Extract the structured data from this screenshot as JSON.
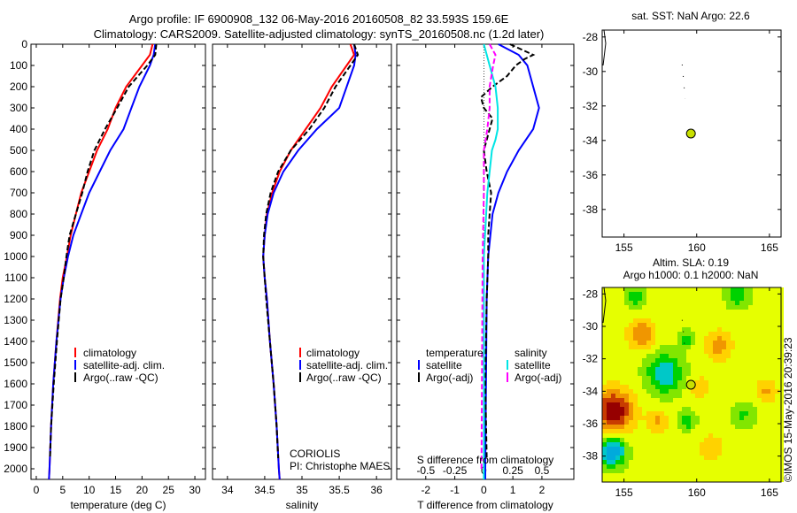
{
  "title": {
    "line1": "Argo profile: IF 6900908_132 06-May-2016 20160508_82 33.593S 159.6E",
    "line2": "Climatology: CARS2009. Satellite-adjusted climatology: synTS_20160508.nc (1.2d later)"
  },
  "colors": {
    "climatology": "#ff0000",
    "satellite": "#0000ff",
    "argo": "#000000",
    "sal_satellite": "#00e5e5",
    "sal_argo": "#ff00ff"
  },
  "chart_data": [
    {
      "type": "line",
      "id": "temperature",
      "xlabel": "temperature (deg C)",
      "ylabel": "",
      "xlim": [
        -1,
        32
      ],
      "ylim": [
        2050,
        0
      ],
      "xticks": [
        0,
        5,
        10,
        15,
        20,
        25,
        30
      ],
      "yticks": [
        0,
        100,
        200,
        300,
        400,
        500,
        600,
        700,
        800,
        900,
        1000,
        1100,
        1200,
        1300,
        1400,
        1500,
        1600,
        1700,
        1800,
        1900,
        2000
      ],
      "legend": [
        "climatology",
        "satellite-adj. clim.",
        "Argo(..raw -QC)"
      ],
      "series": [
        {
          "name": "climatology",
          "color": "#ff0000",
          "dash": false,
          "depth": [
            0,
            50,
            100,
            200,
            300,
            400,
            500,
            600,
            700,
            800,
            900,
            1000,
            1100,
            1200,
            1400,
            1600,
            1800,
            2000,
            2050
          ],
          "values": [
            22,
            21.5,
            20,
            17,
            15,
            13.5,
            11.5,
            10,
            8.5,
            7.5,
            6.5,
            5.8,
            5,
            4.5,
            3.8,
            3.2,
            2.8,
            2.5,
            2.4
          ]
        },
        {
          "name": "satellite-adj. clim.",
          "color": "#0000ff",
          "dash": false,
          "depth": [
            0,
            50,
            100,
            200,
            300,
            400,
            500,
            600,
            700,
            800,
            900,
            1000,
            1100,
            1200,
            1400,
            1600,
            1800,
            2000,
            2050
          ],
          "values": [
            22.5,
            22.2,
            21.5,
            19.5,
            18,
            16.5,
            14,
            12,
            10,
            8.5,
            7,
            6,
            5.2,
            4.6,
            3.8,
            3.2,
            2.8,
            2.5,
            2.4
          ]
        },
        {
          "name": "Argo(..raw -QC)",
          "color": "#000000",
          "dash": true,
          "depth": [
            0,
            50,
            100,
            200,
            300,
            400,
            500,
            600,
            700,
            800,
            900,
            1000,
            1100,
            1200,
            1400,
            1600,
            1800,
            1950
          ],
          "values": [
            22.7,
            22.5,
            21,
            17.5,
            15.3,
            13,
            11,
            9.7,
            8.7,
            7.5,
            6.3,
            5.7,
            5.2,
            4.6,
            3.9,
            3.3,
            2.8,
            2.6
          ]
        }
      ]
    },
    {
      "type": "line",
      "id": "salinity",
      "xlabel": "salinity",
      "xlim": [
        33.8,
        36.2
      ],
      "ylim": [
        2050,
        0
      ],
      "xticks": [
        34,
        34.5,
        35,
        35.5,
        36
      ],
      "legend": [
        "climatology",
        "satellite-adj. clim.",
        "Argo(..raw -QC)"
      ],
      "annotation": [
        "CORIOLIS",
        "PI: Christophe MAES"
      ],
      "series": [
        {
          "name": "climatology",
          "color": "#ff0000",
          "dash": false,
          "depth": [
            0,
            50,
            100,
            200,
            300,
            400,
            500,
            600,
            700,
            800,
            900,
            1000,
            1100,
            1200,
            1400,
            1600,
            1800,
            2000,
            2050
          ],
          "values": [
            35.65,
            35.7,
            35.6,
            35.4,
            35.25,
            35.05,
            34.85,
            34.7,
            34.6,
            34.53,
            34.5,
            34.48,
            34.5,
            34.53,
            34.57,
            34.62,
            34.66,
            34.69,
            34.7
          ]
        },
        {
          "name": "satellite-adj. clim.",
          "color": "#0000ff",
          "dash": false,
          "depth": [
            0,
            50,
            100,
            200,
            300,
            400,
            500,
            600,
            700,
            800,
            900,
            1000,
            1100,
            1200,
            1400,
            1600,
            1800,
            2000,
            2050
          ],
          "values": [
            35.7,
            35.72,
            35.7,
            35.6,
            35.5,
            35.2,
            34.95,
            34.75,
            34.62,
            34.54,
            34.5,
            34.48,
            34.5,
            34.53,
            34.57,
            34.62,
            34.66,
            34.69,
            34.7
          ]
        },
        {
          "name": "Argo(..raw -QC)",
          "color": "#000000",
          "dash": true,
          "depth": [
            0,
            50,
            100,
            200,
            300,
            400,
            500,
            600,
            700,
            800,
            900,
            1000,
            1200,
            1400,
            1600,
            1800,
            1950
          ],
          "values": [
            35.7,
            35.75,
            35.65,
            35.45,
            35.3,
            35.1,
            34.85,
            34.68,
            34.58,
            34.52,
            34.49,
            34.48,
            34.52,
            34.57,
            34.62,
            34.66,
            34.68
          ]
        }
      ]
    },
    {
      "type": "line",
      "id": "difference",
      "xlabel": "T difference from climatology",
      "x2label": "S difference from climatology",
      "xlim": [
        -3,
        3.1
      ],
      "x2lim": [
        -0.75,
        0.775
      ],
      "ylim": [
        2050,
        0
      ],
      "xticks": [
        -2,
        -1,
        0,
        1,
        2
      ],
      "x2ticks": [
        "-0.5",
        "-0.25",
        "0",
        "0.25",
        "0.5"
      ],
      "x2tickvals": [
        -0.5,
        -0.25,
        0,
        0.25,
        0.5
      ],
      "legend": {
        "temperature_heading": "temperature",
        "salinity_heading": "salinity",
        "t_sat": "satellite",
        "t_argo": "Argo(-adj)",
        "s_sat": "satellite",
        "s_argo": "Argo(-adj)"
      },
      "series": [
        {
          "name": "T satellite",
          "color": "#0000ff",
          "dash": false,
          "axis": "T",
          "depth": [
            0,
            50,
            100,
            200,
            300,
            400,
            500,
            600,
            700,
            800,
            1000,
            1200,
            2000,
            2050
          ],
          "values": [
            0.5,
            1.2,
            1.5,
            1.7,
            1.9,
            1.7,
            1.2,
            0.8,
            0.5,
            0.3,
            0.15,
            0.1,
            0.05,
            0.05
          ]
        },
        {
          "name": "T Argo(-adj)",
          "color": "#000000",
          "dash": true,
          "axis": "T",
          "depth": [
            0,
            50,
            70,
            100,
            150,
            200,
            250,
            300,
            350,
            400,
            500,
            600,
            700,
            800,
            900,
            1000,
            1200,
            1600,
            1950
          ],
          "values": [
            0.9,
            1.7,
            1.4,
            1.1,
            0.8,
            0.3,
            -0.1,
            0.0,
            0.3,
            0.2,
            0.0,
            0.1,
            0.25,
            0.2,
            0.15,
            0.15,
            0.1,
            0.05,
            0.1
          ]
        },
        {
          "name": "S satellite",
          "color": "#00e5e5",
          "dash": false,
          "axis": "S",
          "depth": [
            0,
            100,
            200,
            300,
            400,
            450,
            500,
            700,
            1000,
            2000,
            2050
          ],
          "values": [
            0.0,
            0.05,
            0.1,
            0.12,
            0.12,
            0.1,
            0.07,
            0.03,
            0.0,
            0.0,
            0.0
          ]
        },
        {
          "name": "S Argo(-adj)",
          "color": "#ff00ff",
          "dash": true,
          "axis": "S",
          "depth": [
            0,
            50,
            100,
            200,
            300,
            400,
            500,
            700,
            1000,
            2000
          ],
          "values": [
            0.05,
            0.1,
            0.08,
            0.05,
            0.05,
            0.03,
            0.0,
            0.0,
            -0.01,
            -0.02
          ]
        }
      ]
    },
    {
      "type": "scatter",
      "id": "sst_map",
      "title": "sat. SST: NaN Argo: 22.6",
      "xlim": [
        153.5,
        165.8
      ],
      "ylim": [
        -39.6,
        -27.6
      ],
      "xticks": [
        155,
        160,
        165
      ],
      "yticks": [
        -28,
        -30,
        -32,
        -34,
        -36,
        -38
      ],
      "points": [
        {
          "lon": 159.6,
          "lat": -33.6
        }
      ]
    },
    {
      "type": "heatmap",
      "id": "sla_map",
      "title1": "Altim. SLA: 0.19",
      "title2": "Argo h1000: 0.1 h2000: NaN",
      "side_label": "©IMOS 15-May-2016 20:39:23",
      "xlim": [
        153.5,
        165.8
      ],
      "ylim": [
        -39.6,
        -27.6
      ],
      "xticks": [
        155,
        160,
        165
      ],
      "yticks": [
        -28,
        -30,
        -32,
        -34,
        -36,
        -38
      ],
      "points": [
        {
          "lon": 159.6,
          "lat": -33.6
        }
      ],
      "features": [
        {
          "lon": 154.3,
          "lat": -35.2,
          "amp": 0.6,
          "r": 1.3
        },
        {
          "lon": 154.2,
          "lat": -37.7,
          "amp": -0.6,
          "r": 0.9
        },
        {
          "lon": 157.8,
          "lat": -32.9,
          "amp": -0.45,
          "r": 1.2
        },
        {
          "lon": 156.2,
          "lat": -30.5,
          "amp": 0.35,
          "r": 0.9
        },
        {
          "lon": 161.5,
          "lat": -31.2,
          "amp": 0.3,
          "r": 0.9
        },
        {
          "lon": 159.3,
          "lat": -30.8,
          "amp": -0.25,
          "r": 0.5
        },
        {
          "lon": 159.3,
          "lat": -35.8,
          "amp": -0.3,
          "r": 0.6
        },
        {
          "lon": 157.3,
          "lat": -35.8,
          "amp": 0.25,
          "r": 0.7
        },
        {
          "lon": 164.8,
          "lat": -34,
          "amp": 0.25,
          "r": 0.7
        },
        {
          "lon": 163.2,
          "lat": -35.5,
          "amp": -0.2,
          "r": 0.8
        },
        {
          "lon": 155.8,
          "lat": -28.2,
          "amp": -0.25,
          "r": 0.7
        },
        {
          "lon": 162.8,
          "lat": -28.0,
          "amp": -0.3,
          "r": 0.8
        },
        {
          "lon": 160.2,
          "lat": -33.8,
          "amp": 0.2,
          "r": 0.7
        },
        {
          "lon": 161.0,
          "lat": -37.5,
          "amp": 0.15,
          "r": 1.0
        }
      ]
    }
  ]
}
